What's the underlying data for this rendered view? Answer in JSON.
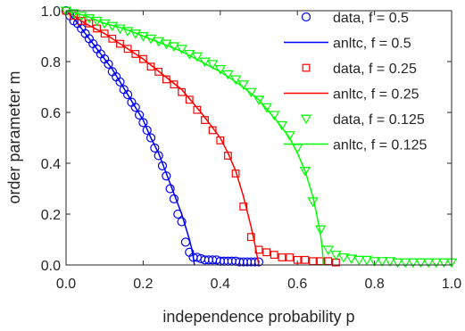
{
  "chart_data": {
    "type": "line",
    "title": "",
    "xlabel": "independence probability p",
    "ylabel": "order parameter m",
    "xlim": [
      0,
      1
    ],
    "ylim": [
      0,
      1
    ],
    "xticks": [
      0,
      0.2,
      0.4,
      0.6,
      0.8,
      1
    ],
    "yticks": [
      0,
      0.2,
      0.4,
      0.6,
      0.8,
      1
    ],
    "xtick_labels": [
      "0.0",
      "0.2",
      "0.4",
      "0.6",
      "0.8",
      "1.0"
    ],
    "ytick_labels": [
      "0.0",
      "0.2",
      "0.4",
      "0.6",
      "0.8",
      "1.0"
    ],
    "grid": false,
    "legend_position": "top-right",
    "series": [
      {
        "name": "data, f = 0.5",
        "kind": "markers",
        "marker": "circle",
        "color": "#0000ff",
        "x": [
          0.0,
          0.01,
          0.02,
          0.03,
          0.04,
          0.05,
          0.06,
          0.07,
          0.08,
          0.09,
          0.1,
          0.11,
          0.12,
          0.13,
          0.14,
          0.15,
          0.16,
          0.17,
          0.18,
          0.19,
          0.2,
          0.21,
          0.22,
          0.23,
          0.24,
          0.25,
          0.26,
          0.27,
          0.28,
          0.29,
          0.3,
          0.31,
          0.32,
          0.33,
          0.34,
          0.35,
          0.36,
          0.37,
          0.38,
          0.39,
          0.4,
          0.41,
          0.42,
          0.43,
          0.44,
          0.45,
          0.46,
          0.47,
          0.48,
          0.49,
          0.5
        ],
        "y": [
          1.0,
          0.98,
          0.96,
          0.95,
          0.93,
          0.91,
          0.89,
          0.87,
          0.85,
          0.83,
          0.81,
          0.79,
          0.76,
          0.74,
          0.72,
          0.69,
          0.67,
          0.64,
          0.62,
          0.59,
          0.56,
          0.53,
          0.5,
          0.46,
          0.43,
          0.39,
          0.35,
          0.3,
          0.26,
          0.2,
          0.17,
          0.09,
          0.05,
          0.03,
          0.03,
          0.025,
          0.02,
          0.02,
          0.02,
          0.02,
          0.015,
          0.015,
          0.015,
          0.015,
          0.015,
          0.012,
          0.012,
          0.012,
          0.012,
          0.012,
          0.012
        ]
      },
      {
        "name": "anltc, f = 0.5",
        "kind": "line",
        "color": "#0000ff",
        "x": [
          0.0,
          0.02,
          0.04,
          0.06,
          0.08,
          0.1,
          0.12,
          0.14,
          0.16,
          0.18,
          0.2,
          0.22,
          0.24,
          0.26,
          0.28,
          0.3,
          0.31,
          0.32,
          0.325,
          0.33,
          0.333
        ],
        "y": [
          1.0,
          0.97,
          0.93,
          0.89,
          0.85,
          0.81,
          0.77,
          0.72,
          0.67,
          0.62,
          0.57,
          0.5,
          0.44,
          0.36,
          0.28,
          0.2,
          0.15,
          0.1,
          0.07,
          0.03,
          0.0
        ]
      },
      {
        "name": "data, f = 0.25",
        "kind": "markers",
        "marker": "square",
        "color": "#ff0000",
        "x": [
          0.0,
          0.02,
          0.04,
          0.06,
          0.08,
          0.1,
          0.12,
          0.14,
          0.16,
          0.18,
          0.2,
          0.22,
          0.24,
          0.26,
          0.28,
          0.3,
          0.32,
          0.34,
          0.36,
          0.38,
          0.4,
          0.42,
          0.44,
          0.46,
          0.48,
          0.5,
          0.52,
          0.54,
          0.56,
          0.58,
          0.6,
          0.62,
          0.64,
          0.66,
          0.68,
          0.7
        ],
        "y": [
          1.0,
          0.98,
          0.96,
          0.95,
          0.93,
          0.91,
          0.89,
          0.87,
          0.85,
          0.83,
          0.81,
          0.78,
          0.76,
          0.73,
          0.71,
          0.68,
          0.65,
          0.61,
          0.57,
          0.53,
          0.49,
          0.43,
          0.36,
          0.23,
          0.11,
          0.06,
          0.05,
          0.04,
          0.03,
          0.03,
          0.02,
          0.02,
          0.015,
          0.015,
          0.015,
          0.01
        ]
      },
      {
        "name": "anltc, f = 0.25",
        "kind": "line",
        "color": "#ff0000",
        "x": [
          0.0,
          0.05,
          0.1,
          0.15,
          0.2,
          0.25,
          0.3,
          0.35,
          0.38,
          0.4,
          0.42,
          0.44,
          0.46,
          0.47,
          0.48,
          0.49,
          0.495,
          0.5
        ],
        "y": [
          1.0,
          0.95,
          0.91,
          0.86,
          0.81,
          0.75,
          0.69,
          0.6,
          0.54,
          0.5,
          0.44,
          0.37,
          0.27,
          0.21,
          0.15,
          0.08,
          0.04,
          0.0
        ]
      },
      {
        "name": "data, f = 0.125",
        "kind": "markers",
        "marker": "triangle-down",
        "color": "#00ff00",
        "x": [
          0.0,
          0.02,
          0.04,
          0.06,
          0.08,
          0.1,
          0.12,
          0.14,
          0.16,
          0.18,
          0.2,
          0.22,
          0.24,
          0.26,
          0.28,
          0.3,
          0.32,
          0.34,
          0.36,
          0.38,
          0.4,
          0.42,
          0.44,
          0.46,
          0.48,
          0.5,
          0.52,
          0.54,
          0.56,
          0.58,
          0.6,
          0.62,
          0.64,
          0.66,
          0.68,
          0.7,
          0.72,
          0.74,
          0.76,
          0.78,
          0.8,
          0.82,
          0.84,
          0.86,
          0.88,
          0.9,
          0.92,
          0.94,
          0.96,
          0.98,
          1.0
        ],
        "y": [
          1.0,
          0.99,
          0.98,
          0.97,
          0.96,
          0.95,
          0.94,
          0.93,
          0.92,
          0.91,
          0.9,
          0.89,
          0.88,
          0.87,
          0.86,
          0.85,
          0.83,
          0.82,
          0.8,
          0.79,
          0.77,
          0.75,
          0.73,
          0.71,
          0.68,
          0.65,
          0.62,
          0.59,
          0.55,
          0.51,
          0.46,
          0.37,
          0.25,
          0.14,
          0.06,
          0.04,
          0.03,
          0.025,
          0.02,
          0.02,
          0.015,
          0.015,
          0.015,
          0.01,
          0.01,
          0.01,
          0.01,
          0.01,
          0.01,
          0.01,
          0.01
        ]
      },
      {
        "name": "anltc, f = 0.125",
        "kind": "line",
        "color": "#00ff00",
        "x": [
          0.0,
          0.05,
          0.1,
          0.15,
          0.2,
          0.25,
          0.3,
          0.35,
          0.4,
          0.45,
          0.5,
          0.55,
          0.58,
          0.6,
          0.62,
          0.64,
          0.65,
          0.66,
          0.665,
          0.667
        ],
        "y": [
          1.0,
          0.98,
          0.95,
          0.93,
          0.9,
          0.87,
          0.84,
          0.8,
          0.76,
          0.71,
          0.65,
          0.56,
          0.5,
          0.44,
          0.37,
          0.27,
          0.2,
          0.12,
          0.06,
          0.0
        ]
      }
    ]
  }
}
